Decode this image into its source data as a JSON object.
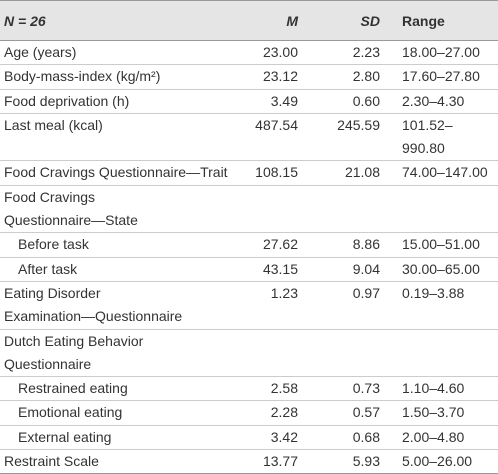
{
  "table": {
    "header": [
      "N = 26",
      "M",
      "SD",
      "Range"
    ],
    "rows": [
      {
        "label": [
          "Age (years)"
        ],
        "cells": [
          "23.00",
          "2.23",
          "18.00–27.00"
        ]
      },
      {
        "label": [
          "Body-mass-index (kg/m²)"
        ],
        "cells": [
          "23.12",
          "2.80",
          "17.60–27.80"
        ]
      },
      {
        "label": [
          "Food deprivation (h)"
        ],
        "cells": [
          "3.49",
          "0.60",
          "2.30–4.30"
        ]
      },
      {
        "label": [
          "Last meal (kcal)"
        ],
        "cells": [
          "487.54",
          "245.59",
          "101.52–990.80"
        ]
      },
      {
        "label": [
          "Food Cravings Questionnaire—Trait"
        ],
        "cells": [
          "108.15",
          "21.08",
          "74.00–147.00"
        ]
      },
      {
        "label": [
          "Food Cravings",
          "Questionnaire—State"
        ]
      },
      {
        "label": [
          "Before task"
        ],
        "cells": [
          "27.62",
          "8.86",
          "15.00–51.00"
        ],
        "indent": true
      },
      {
        "label": [
          "After task"
        ],
        "cells": [
          "43.15",
          "9.04",
          "30.00–65.00"
        ],
        "indent": true
      },
      {
        "label": [
          "Eating Disorder",
          "Examination—Questionnaire"
        ],
        "cells": [
          "1.23",
          "0.97",
          "0.19–3.88"
        ]
      },
      {
        "label": [
          "Dutch Eating Behavior",
          "Questionnaire"
        ]
      },
      {
        "label": [
          "Restrained eating"
        ],
        "cells": [
          "2.58",
          "0.73",
          "1.10–4.60"
        ],
        "indent": true
      },
      {
        "label": [
          "Emotional eating"
        ],
        "cells": [
          "2.28",
          "0.57",
          "1.50–3.70"
        ],
        "indent": true
      },
      {
        "label": [
          "External eating"
        ],
        "cells": [
          "3.42",
          "0.68",
          "2.00–4.80"
        ],
        "indent": true
      },
      {
        "label": [
          "Restraint Scale"
        ],
        "cells": [
          "13.77",
          "5.93",
          "5.00–26.00"
        ]
      }
    ]
  }
}
